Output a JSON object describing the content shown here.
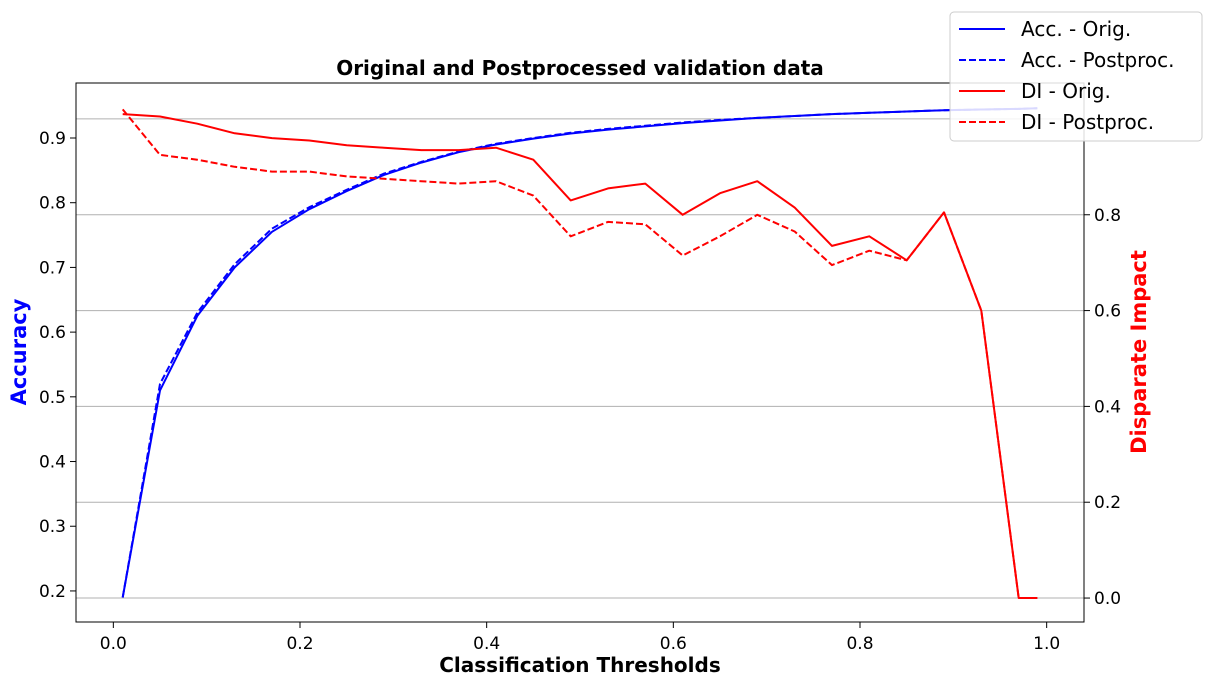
{
  "chart_data": {
    "type": "line",
    "title": "Original and Postprocessed validation data",
    "xlabel": "Classification Thresholds",
    "ylabel_left": "Accuracy",
    "ylabel_right": "Disparate Impact",
    "xlim": [
      -0.04,
      1.04
    ],
    "ylim_left": [
      0.152,
      0.985
    ],
    "ylim_right": [
      -0.05,
      1.075
    ],
    "x_ticks": [
      "0.0",
      "0.2",
      "0.4",
      "0.6",
      "0.8",
      "1.0"
    ],
    "y_ticks_left": [
      "0.2",
      "0.3",
      "0.4",
      "0.5",
      "0.6",
      "0.7",
      "0.8",
      "0.9"
    ],
    "y_ticks_right": [
      "0.0",
      "0.2",
      "0.4",
      "0.6",
      "0.8"
    ],
    "grid": "right-axis horizontal",
    "legend_position": "top-right",
    "x": [
      0.01,
      0.05,
      0.09,
      0.13,
      0.17,
      0.21,
      0.25,
      0.29,
      0.33,
      0.37,
      0.41,
      0.45,
      0.49,
      0.53,
      0.57,
      0.61,
      0.65,
      0.69,
      0.73,
      0.77,
      0.81,
      0.85,
      0.89,
      0.93,
      0.97,
      0.99
    ],
    "series": [
      {
        "name": "Acc. - Orig.",
        "axis": "left",
        "color": "#0000ff",
        "dash": "solid",
        "values": [
          0.19,
          0.51,
          0.625,
          0.7,
          0.755,
          0.79,
          0.818,
          0.843,
          0.862,
          0.878,
          0.89,
          0.899,
          0.907,
          0.913,
          0.918,
          0.923,
          0.927,
          0.931,
          0.934,
          0.937,
          0.939,
          0.941,
          0.943,
          0.944,
          0.945,
          0.946
        ]
      },
      {
        "name": "Acc. - Postproc.",
        "axis": "left",
        "color": "#0000ff",
        "dash": "dashed",
        "values": [
          0.19,
          0.52,
          0.63,
          0.705,
          0.76,
          0.793,
          0.82,
          0.845,
          0.863,
          0.879,
          0.891,
          0.9,
          0.908,
          0.914,
          0.919,
          0.924,
          0.928,
          0.931,
          0.934,
          0.937,
          0.939,
          0.941,
          0.943,
          0.944,
          0.945,
          0.946
        ]
      },
      {
        "name": "DI - Orig.",
        "axis": "right",
        "color": "#ff0000",
        "dash": "solid",
        "values": [
          1.01,
          1.005,
          0.99,
          0.97,
          0.96,
          0.955,
          0.945,
          0.94,
          0.935,
          0.935,
          0.94,
          0.915,
          0.83,
          0.855,
          0.865,
          0.8,
          0.845,
          0.87,
          0.815,
          0.735,
          0.755,
          0.705,
          0.805,
          0.6,
          0.0,
          0.0
        ]
      },
      {
        "name": "DI - Postproc.",
        "axis": "right",
        "color": "#ff0000",
        "dash": "dashed",
        "values": [
          1.02,
          0.925,
          0.915,
          0.9,
          0.89,
          0.89,
          0.88,
          0.875,
          0.87,
          0.865,
          0.87,
          0.84,
          0.755,
          0.785,
          0.78,
          0.715,
          0.755,
          0.8,
          0.765,
          0.695,
          0.725,
          0.705,
          0.805,
          0.6,
          0.0,
          0.0
        ]
      }
    ]
  }
}
